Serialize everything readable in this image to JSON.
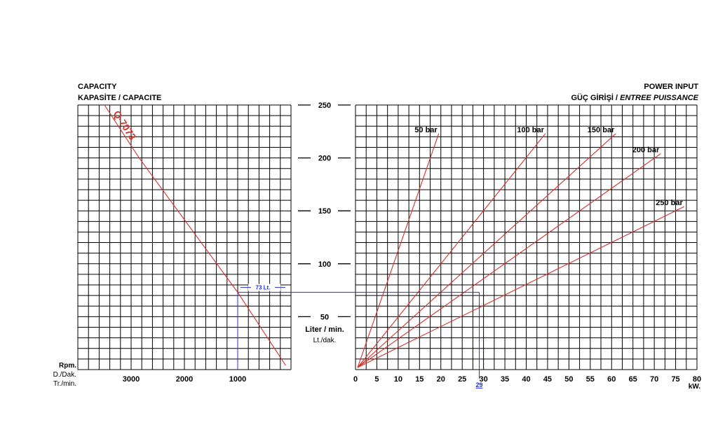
{
  "left_header": {
    "title": "CAPACITY",
    "subtitle": "KAPASİTE / CAPACITE"
  },
  "right_header": {
    "title": "POWER INPUT",
    "subtitle_plain": "GÜÇ GİRİŞİ / ",
    "subtitle_italic": "ENTREE PUISSANCE"
  },
  "rpm_unit_lines": [
    "Rpm.",
    "D./Dak.",
    "Tr./min."
  ],
  "flow_unit_lines": [
    "Liter / min.",
    "Lt./dak."
  ],
  "power_unit": "kW.",
  "colors": {
    "curve": "#d9302a",
    "reading": "#1f2fd6",
    "grid": "#000000"
  },
  "chart_data": [
    {
      "type": "line",
      "name": "capacity",
      "xlabel": "Rpm. D./Dak. Tr./min.",
      "ylabel": "Liter / min. Lt./dak.",
      "x_ticks": [
        3000,
        2000,
        1000
      ],
      "y_ticks": [
        50,
        100,
        150,
        200,
        250
      ],
      "xlim": [
        3950,
        0
      ],
      "ylim": [
        0,
        250
      ],
      "grid": true,
      "series": [
        {
          "name": "Q-7073",
          "points": [
            [
              3500,
              250
            ],
            [
              2850,
              200
            ],
            [
              1000,
              73
            ],
            [
              100,
              4
            ]
          ]
        }
      ],
      "reading": {
        "rpm": 1000,
        "flow": 73,
        "label": "73 Lt."
      }
    },
    {
      "type": "line",
      "name": "power_input",
      "xlabel": "kW.",
      "x_ticks": [
        0,
        5,
        10,
        15,
        20,
        25,
        30,
        35,
        40,
        45,
        50,
        55,
        60,
        65,
        70,
        75,
        80
      ],
      "ylim": [
        0,
        250
      ],
      "xlim": [
        0,
        80
      ],
      "grid": true,
      "series": [
        {
          "name": "50 bar",
          "end": [
            19.5,
            223
          ]
        },
        {
          "name": "100 bar",
          "end": [
            44.5,
            223
          ]
        },
        {
          "name": "150 bar",
          "end": [
            61,
            223
          ]
        },
        {
          "name": "200 bar",
          "end": [
            71.5,
            204
          ]
        },
        {
          "name": "250 bar",
          "end": [
            77,
            154
          ]
        }
      ],
      "origin": [
        0.5,
        2
      ],
      "reading": {
        "flow": 73,
        "power": 29,
        "label": "29"
      }
    }
  ]
}
